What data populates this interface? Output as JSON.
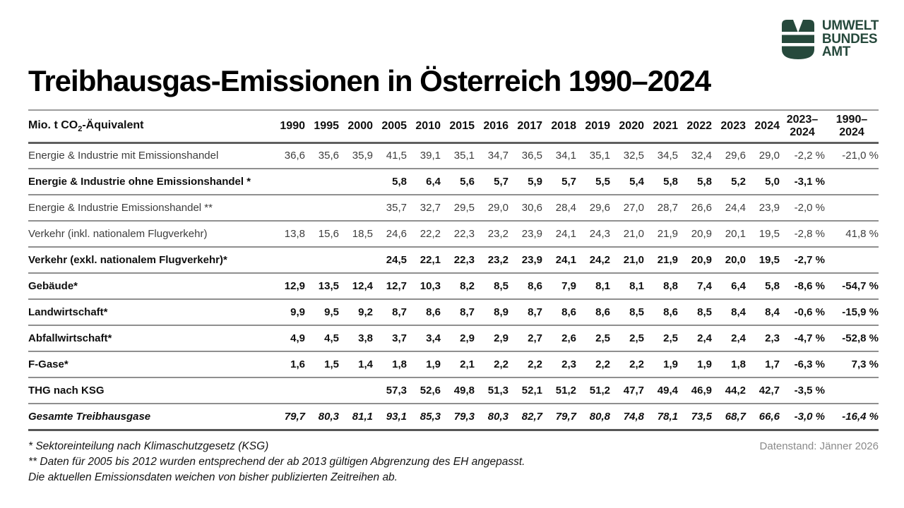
{
  "logo": {
    "line1": "UMWELT",
    "line2": "BUNDES",
    "line3": "AMT",
    "color": "#26493c",
    "icon": "umweltbundesamt-leaf-icon"
  },
  "title": "Treibhausgas-Emissionen in Österreich 1990–2024",
  "table": {
    "unit": {
      "prefix": "Mio. t CO",
      "sub": "2",
      "suffix": "-Äquivalent"
    },
    "years": [
      "1990",
      "1995",
      "2000",
      "2005",
      "2010",
      "2015",
      "2016",
      "2017",
      "2018",
      "2019",
      "2020",
      "2021",
      "2022",
      "2023",
      "2024"
    ],
    "change_columns": [
      "2023–\n2024",
      "1990–\n2024"
    ]
  },
  "chart_data": {
    "type": "table",
    "title": "Treibhausgas-Emissionen in Österreich 1990–2024",
    "unit": "Mio. t CO2-Äquivalent",
    "categories": [
      "1990",
      "1995",
      "2000",
      "2005",
      "2010",
      "2015",
      "2016",
      "2017",
      "2018",
      "2019",
      "2020",
      "2021",
      "2022",
      "2023",
      "2024"
    ],
    "change_columns": [
      "2023–2024",
      "1990–2024"
    ],
    "rows": [
      {
        "label": "Energie & Industrie mit Emissionshandel",
        "style": "regular",
        "values": [
          "36,6",
          "35,6",
          "35,9",
          "41,5",
          "39,1",
          "35,1",
          "34,7",
          "36,5",
          "34,1",
          "35,1",
          "32,5",
          "34,5",
          "32,4",
          "29,6",
          "29,0"
        ],
        "change_2023_2024": "-2,2 %",
        "change_1990_2024": "-21,0 %"
      },
      {
        "label": "Energie & Industrie ohne Emissionshandel *",
        "style": "bold",
        "values": [
          "",
          "",
          "",
          "5,8",
          "6,4",
          "5,6",
          "5,7",
          "5,9",
          "5,7",
          "5,5",
          "5,4",
          "5,8",
          "5,8",
          "5,2",
          "5,0"
        ],
        "change_2023_2024": "-3,1 %",
        "change_1990_2024": ""
      },
      {
        "label": "Energie & Industrie Emissionshandel **",
        "style": "regular",
        "values": [
          "",
          "",
          "",
          "35,7",
          "32,7",
          "29,5",
          "29,0",
          "30,6",
          "28,4",
          "29,6",
          "27,0",
          "28,7",
          "26,6",
          "24,4",
          "23,9"
        ],
        "change_2023_2024": "-2,0 %",
        "change_1990_2024": ""
      },
      {
        "label": "Verkehr (inkl. nationalem Flugverkehr)",
        "style": "regular",
        "values": [
          "13,8",
          "15,6",
          "18,5",
          "24,6",
          "22,2",
          "22,3",
          "23,2",
          "23,9",
          "24,1",
          "24,3",
          "21,0",
          "21,9",
          "20,9",
          "20,1",
          "19,5"
        ],
        "change_2023_2024": "-2,8 %",
        "change_1990_2024": "41,8 %"
      },
      {
        "label": "Verkehr (exkl. nationalem Flugverkehr)*",
        "style": "bold",
        "values": [
          "",
          "",
          "",
          "24,5",
          "22,1",
          "22,3",
          "23,2",
          "23,9",
          "24,1",
          "24,2",
          "21,0",
          "21,9",
          "20,9",
          "20,0",
          "19,5"
        ],
        "change_2023_2024": "-2,7 %",
        "change_1990_2024": ""
      },
      {
        "label": "Gebäude*",
        "style": "bold",
        "values": [
          "12,9",
          "13,5",
          "12,4",
          "12,7",
          "10,3",
          "8,2",
          "8,5",
          "8,6",
          "7,9",
          "8,1",
          "8,1",
          "8,8",
          "7,4",
          "6,4",
          "5,8"
        ],
        "change_2023_2024": "-8,6 %",
        "change_1990_2024": "-54,7 %"
      },
      {
        "label": "Landwirtschaft*",
        "style": "bold",
        "values": [
          "9,9",
          "9,5",
          "9,2",
          "8,7",
          "8,6",
          "8,7",
          "8,9",
          "8,7",
          "8,6",
          "8,6",
          "8,5",
          "8,6",
          "8,5",
          "8,4",
          "8,4"
        ],
        "change_2023_2024": "-0,6 %",
        "change_1990_2024": "-15,9 %"
      },
      {
        "label": "Abfallwirtschaft*",
        "style": "bold",
        "values": [
          "4,9",
          "4,5",
          "3,8",
          "3,7",
          "3,4",
          "2,9",
          "2,9",
          "2,7",
          "2,6",
          "2,5",
          "2,5",
          "2,5",
          "2,4",
          "2,4",
          "2,3"
        ],
        "change_2023_2024": "-4,7 %",
        "change_1990_2024": "-52,8 %"
      },
      {
        "label": "F-Gase*",
        "style": "bold",
        "values": [
          "1,6",
          "1,5",
          "1,4",
          "1,8",
          "1,9",
          "2,1",
          "2,2",
          "2,2",
          "2,3",
          "2,2",
          "2,2",
          "1,9",
          "1,9",
          "1,8",
          "1,7"
        ],
        "change_2023_2024": "-6,3 %",
        "change_1990_2024": "7,3 %"
      },
      {
        "label": "THG nach KSG",
        "style": "bold",
        "values": [
          "",
          "",
          "",
          "57,3",
          "52,6",
          "49,8",
          "51,3",
          "52,1",
          "51,2",
          "51,2",
          "47,7",
          "49,4",
          "46,9",
          "44,2",
          "42,7"
        ],
        "change_2023_2024": "-3,5 %",
        "change_1990_2024": ""
      },
      {
        "label": "Gesamte Treibhausgase",
        "style": "bold-italic",
        "values": [
          "79,7",
          "80,3",
          "81,1",
          "93,1",
          "85,3",
          "79,3",
          "80,3",
          "82,7",
          "79,7",
          "80,8",
          "74,8",
          "78,1",
          "73,5",
          "68,7",
          "66,6"
        ],
        "change_2023_2024": "-3,0 %",
        "change_1990_2024": "-16,4 %"
      }
    ]
  },
  "footnotes": [
    "* Sektoreinteilung nach Klimaschutzgesetz (KSG)",
    "** Daten für 2005 bis 2012 wurden entsprechend der ab 2013 gültigen Abgrenzung des EH angepasst.",
    "Die aktuellen Emissionsdaten weichen von bisher publizierten Zeitreihen ab."
  ],
  "data_status": "Datenstand: Jänner 2026"
}
